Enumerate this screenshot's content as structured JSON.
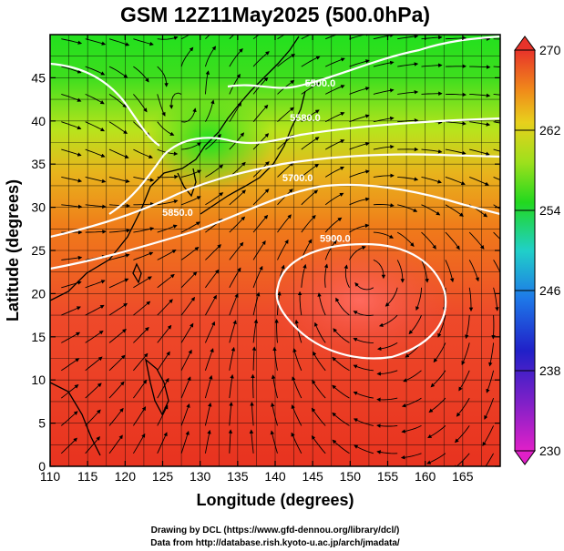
{
  "title": "GSM 12Z11May2025 (500.0hPa)",
  "xlabel": "Longitude (degrees)",
  "ylabel": "Latitude  (degrees)",
  "x_ticks": [
    "110",
    "115",
    "120",
    "125",
    "130",
    "135",
    "140",
    "145",
    "150",
    "155",
    "160",
    "165"
  ],
  "y_ticks": [
    "0",
    "5",
    "10",
    "15",
    "20",
    "25",
    "30",
    "35",
    "40",
    "45"
  ],
  "colorbar_ticks": [
    "230",
    "238",
    "246",
    "254",
    "262",
    "270"
  ],
  "contours": [
    {
      "label": "5900.0",
      "lon": 148,
      "lat": 26
    },
    {
      "label": "5850.0",
      "lon": 127,
      "lat": 29
    },
    {
      "label": "5700.0",
      "lon": 143,
      "lat": 33
    },
    {
      "label": "5580.0",
      "lon": 144,
      "lat": 40
    },
    {
      "label": "5500.0",
      "lon": 146,
      "lat": 44
    }
  ],
  "credits": {
    "line1": "Drawing by DCL (https://www.gfd-dennou.org/library/dcl/)",
    "line2": "Data from http://database.rish.kyoto-u.ac.jp/arch/jmadata/"
  },
  "chart_data": {
    "type": "heatmap",
    "title": "GSM 12Z11May2025 (500.0hPa)",
    "xlabel": "Longitude (degrees)",
    "ylabel": "Latitude  (degrees)",
    "xlim": [
      110,
      170
    ],
    "ylim": [
      0,
      50
    ],
    "field": "temperature (K) with geopotential height contours and wind streamlines",
    "color_range": [
      230,
      270
    ],
    "colorbar_ticks": [
      230,
      238,
      246,
      254,
      262,
      270
    ],
    "colors": {
      "warm": "#e8332a",
      "orange": "#f08a1a",
      "yellow": "#e8e020",
      "green": "#22d81e",
      "cyan": "#22c8e0",
      "blue": "#1e3cd8",
      "magenta": "#e020c8"
    }
  }
}
